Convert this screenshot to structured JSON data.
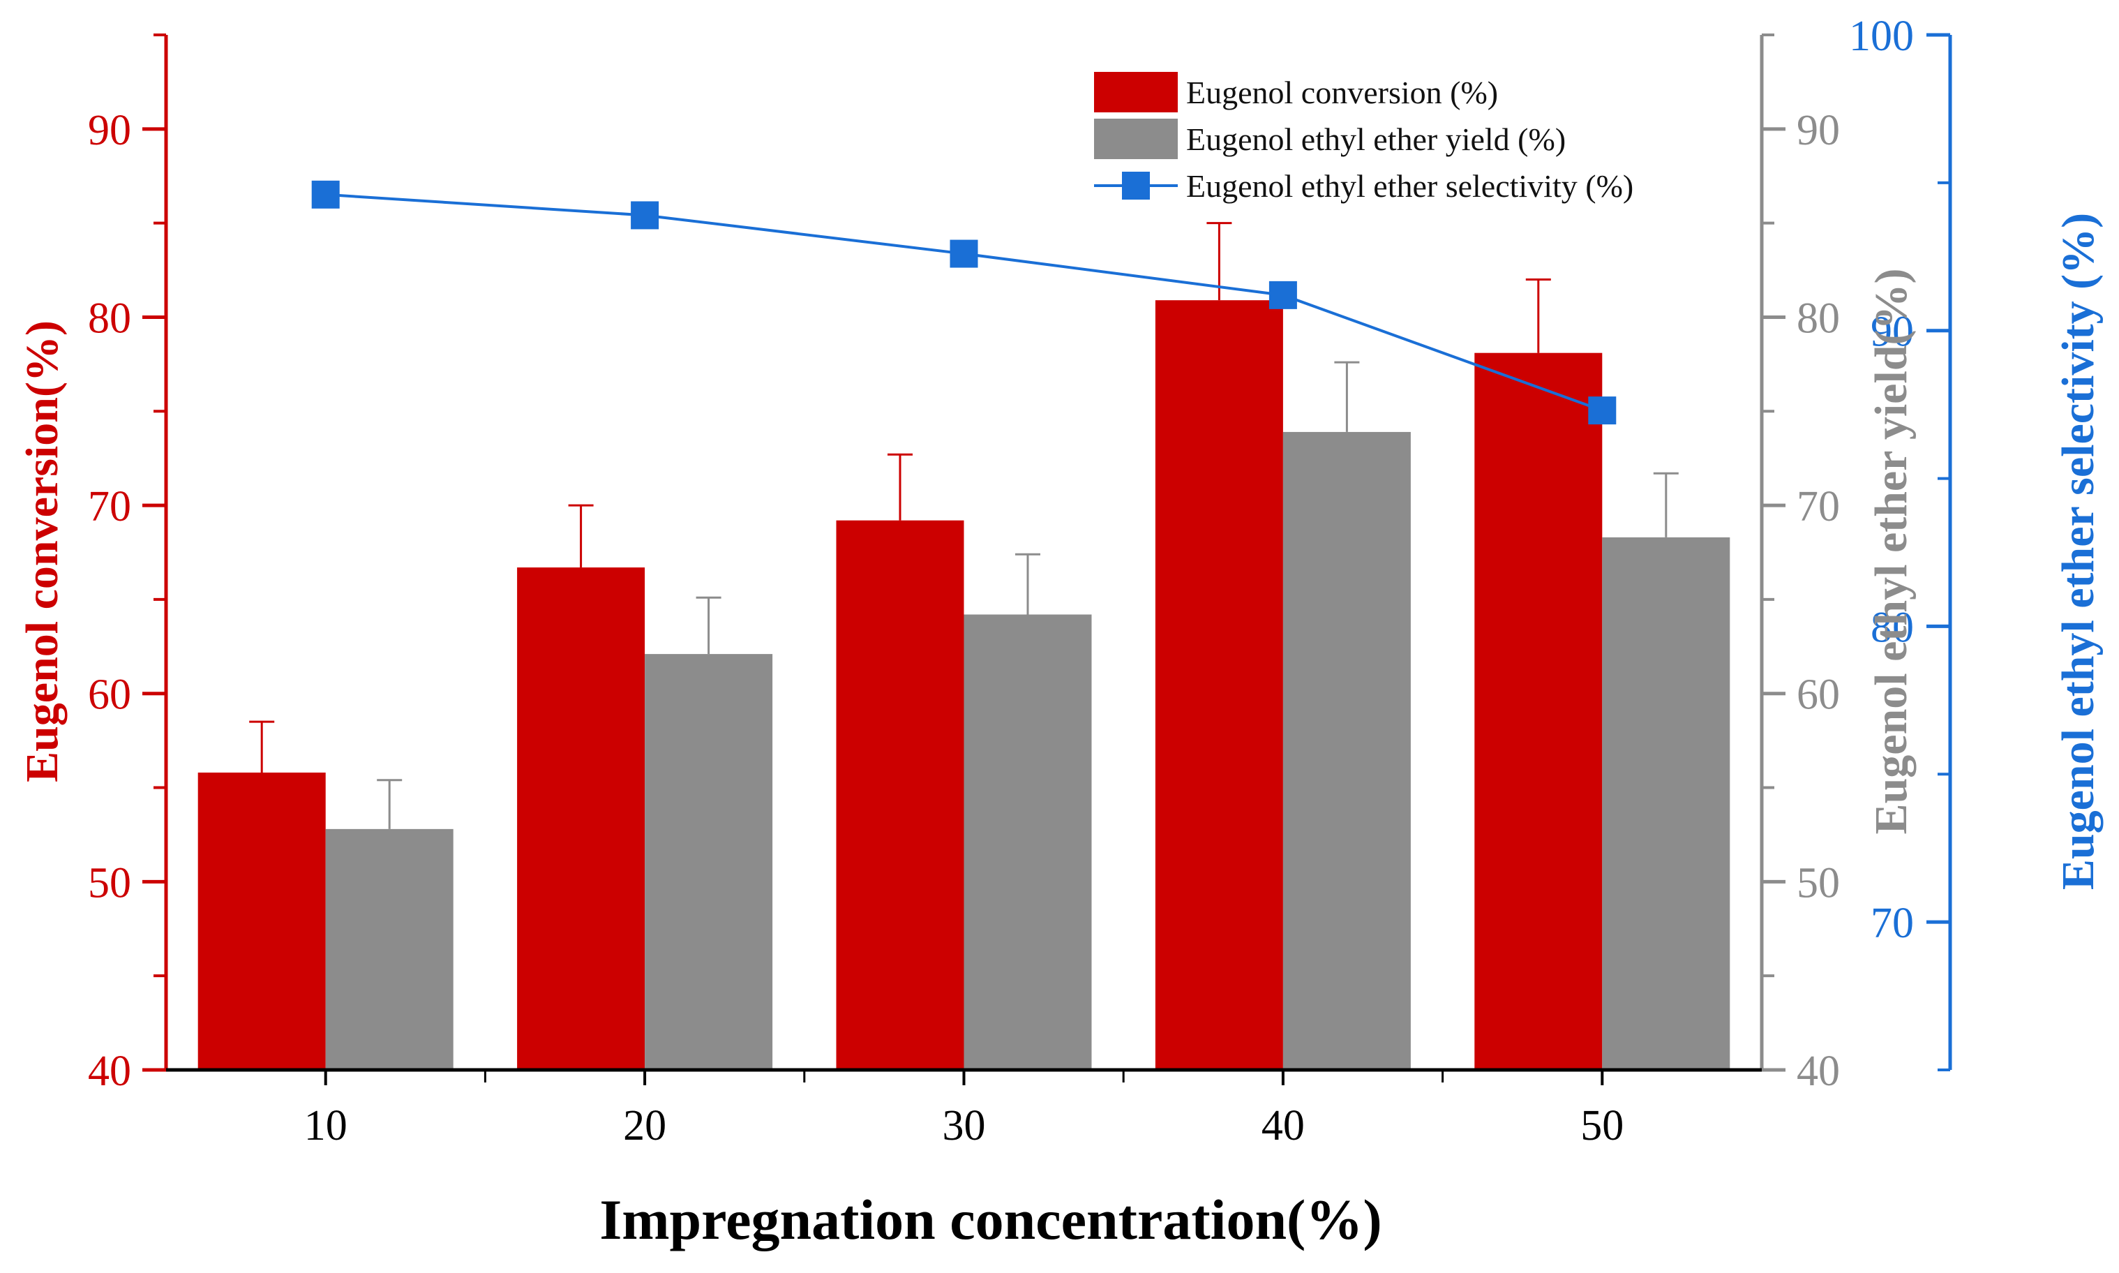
{
  "chart_data": {
    "type": "bar",
    "xlabel": "Impregnation concentration(%)",
    "categories": [
      "10",
      "20",
      "30",
      "40",
      "50"
    ],
    "legend_position": "top-right",
    "grid": false,
    "y_left": {
      "label": "Eugenol conversion(%)",
      "range": [
        40,
        95
      ],
      "ticks": [
        "40",
        "50",
        "60",
        "70",
        "80",
        "90"
      ],
      "color": "#cc0000"
    },
    "y_right1": {
      "label": "Eugenol ethyl ether yield(%)",
      "range": [
        40,
        95
      ],
      "ticks": [
        "40",
        "50",
        "60",
        "70",
        "80",
        "90"
      ],
      "color": "#8c8c8c"
    },
    "y_right2": {
      "label": "Eugenol ethyl ether selectivity (%)",
      "range": [
        65,
        100
      ],
      "ticks": [
        "70",
        "80",
        "90",
        "100"
      ],
      "color": "#1a6fd6"
    },
    "series": [
      {
        "name": "Eugenol conversion (%)",
        "kind": "bar",
        "axis": "y_left",
        "color": "#cc0000",
        "values": [
          55.8,
          66.7,
          69.2,
          80.9,
          78.1
        ],
        "errors": [
          2.7,
          3.3,
          3.5,
          4.1,
          3.9
        ]
      },
      {
        "name": "Eugenol ethyl ether yield (%)",
        "kind": "bar",
        "axis": "y_right1",
        "color": "#8c8c8c",
        "values": [
          52.8,
          62.1,
          64.2,
          73.9,
          68.3
        ],
        "errors": [
          2.6,
          3.0,
          3.2,
          3.7,
          3.4
        ]
      },
      {
        "name": "Eugenol ethyl ether selectivity (%)",
        "kind": "line",
        "axis": "y_right2",
        "color": "#1a6fd6",
        "values": [
          94.6,
          93.9,
          92.6,
          91.2,
          87.3
        ]
      }
    ]
  }
}
